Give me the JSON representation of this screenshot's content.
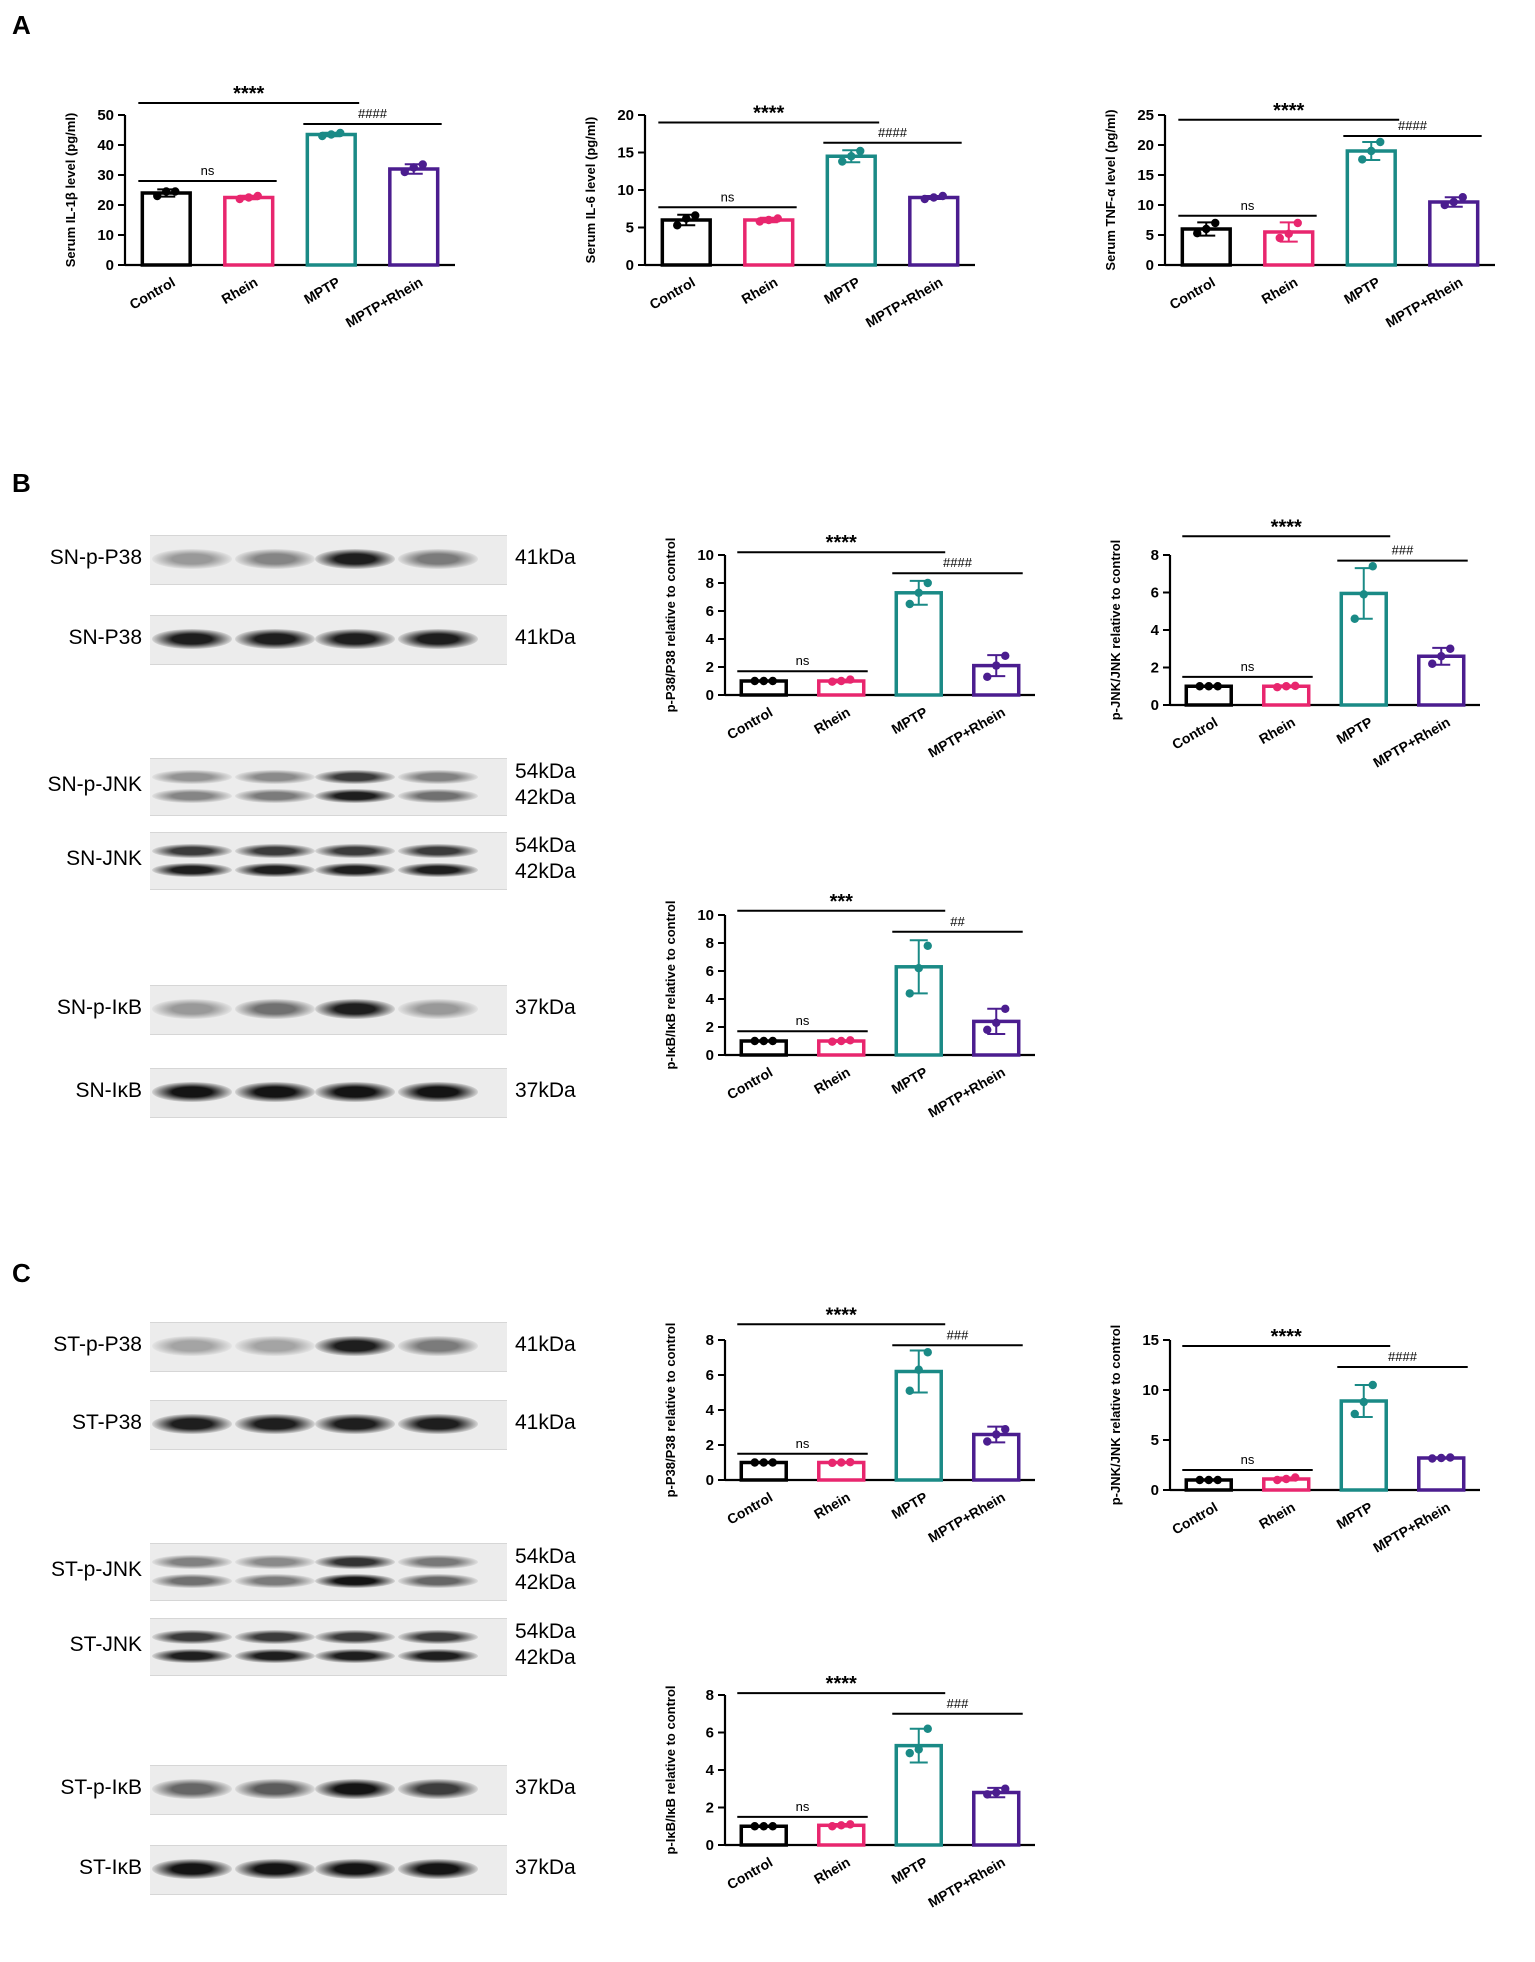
{
  "panels": {
    "a": "A",
    "b": "B",
    "c": "C"
  },
  "groups": [
    "Control",
    "Rhein",
    "MPTP",
    "MPTP+Rhein"
  ],
  "colors": {
    "Control": "#000000",
    "Rhein": "#e8266e",
    "MPTP": "#1a8a86",
    "MPTP+Rhein": "#4b1d8f"
  },
  "blots": {
    "B": [
      {
        "label": "SN-p-P38",
        "kda": [
          "41kDa"
        ],
        "intensity": [
          0.35,
          0.45,
          0.95,
          0.5
        ],
        "double": false
      },
      {
        "label": "SN-P38",
        "kda": [
          "41kDa"
        ],
        "intensity": [
          0.95,
          0.95,
          0.95,
          0.95
        ],
        "double": false
      },
      {
        "label": "SN-p-JNK",
        "kda": [
          "54kDa",
          "42kDa"
        ],
        "intensity": [
          0.45,
          0.5,
          0.95,
          0.55
        ],
        "double": true
      },
      {
        "label": "SN-JNK",
        "kda": [
          "54kDa",
          "42kDa"
        ],
        "intensity": [
          0.95,
          0.95,
          0.95,
          0.95
        ],
        "double": true
      },
      {
        "label": "SN-p-IκB",
        "kda": [
          "37kDa"
        ],
        "intensity": [
          0.35,
          0.55,
          0.95,
          0.35
        ],
        "double": false
      },
      {
        "label": "SN-IκB",
        "kda": [
          "37kDa"
        ],
        "intensity": [
          1.0,
          1.0,
          1.0,
          1.0
        ],
        "double": false
      }
    ],
    "C": [
      {
        "label": "ST-p-P38",
        "kda": [
          "41kDa"
        ],
        "intensity": [
          0.3,
          0.3,
          0.95,
          0.5
        ],
        "double": false
      },
      {
        "label": "ST-P38",
        "kda": [
          "41kDa"
        ],
        "intensity": [
          0.95,
          0.95,
          0.95,
          0.95
        ],
        "double": false
      },
      {
        "label": "ST-p-JNK",
        "kda": [
          "54kDa",
          "42kDa"
        ],
        "intensity": [
          0.55,
          0.5,
          1.0,
          0.6
        ],
        "double": true
      },
      {
        "label": "ST-JNK",
        "kda": [
          "54kDa",
          "42kDa"
        ],
        "intensity": [
          0.95,
          0.95,
          0.95,
          0.95
        ],
        "double": true
      },
      {
        "label": "ST-p-IκB",
        "kda": [
          "37kDa"
        ],
        "intensity": [
          0.6,
          0.65,
          1.0,
          0.8
        ],
        "double": false
      },
      {
        "label": "ST-IκB",
        "kda": [
          "37kDa"
        ],
        "intensity": [
          1.0,
          1.0,
          1.0,
          1.0
        ],
        "double": false
      }
    ]
  },
  "chart_data": [
    {
      "id": "A1",
      "type": "bar",
      "ylabel": "Serum IL-1β level (pg/ml)",
      "ylim": [
        0,
        50
      ],
      "yticks": [
        0,
        10,
        20,
        30,
        40,
        50
      ],
      "categories": [
        "Control",
        "Rhein",
        "MPTP",
        "MPTP+Rhein"
      ],
      "values": [
        24,
        22.5,
        43.5,
        32
      ],
      "sd": [
        1.2,
        0.6,
        0.6,
        1.6
      ],
      "points": [
        [
          23,
          24.5,
          24.5
        ],
        [
          22,
          22.5,
          23
        ],
        [
          43,
          43.5,
          44
        ],
        [
          31,
          32.5,
          33.5
        ]
      ],
      "annotations": [
        {
          "text": "ns",
          "from": 0,
          "to": 1,
          "level": 28
        },
        {
          "text": "****",
          "from": 0,
          "to": 2,
          "level": 54
        },
        {
          "text": "####",
          "from": 2,
          "to": 3,
          "level": 47
        }
      ]
    },
    {
      "id": "A2",
      "type": "bar",
      "ylabel": "Serum IL-6 level (pg/ml)",
      "ylim": [
        0,
        20
      ],
      "yticks": [
        0,
        5,
        10,
        15,
        20
      ],
      "categories": [
        "Control",
        "Rhein",
        "MPTP",
        "MPTP+Rhein"
      ],
      "values": [
        6,
        6,
        14.5,
        9
      ],
      "sd": [
        0.7,
        0.3,
        0.8,
        0.2
      ],
      "points": [
        [
          5.3,
          6.2,
          6.6
        ],
        [
          5.8,
          6,
          6.2
        ],
        [
          13.8,
          14.5,
          15.2
        ],
        [
          8.8,
          9,
          9.2
        ]
      ],
      "annotations": [
        {
          "text": "ns",
          "from": 0,
          "to": 1,
          "level": 7.7
        },
        {
          "text": "****",
          "from": 0,
          "to": 2,
          "level": 19
        },
        {
          "text": "####",
          "from": 2,
          "to": 3,
          "level": 16.3
        }
      ]
    },
    {
      "id": "A3",
      "type": "bar",
      "ylabel": "Serum TNF-α level (pg/ml)",
      "ylim": [
        0,
        25
      ],
      "yticks": [
        0,
        5,
        10,
        15,
        20,
        25
      ],
      "categories": [
        "Control",
        "Rhein",
        "MPTP",
        "MPTP+Rhein"
      ],
      "values": [
        6,
        5.5,
        19,
        10.5
      ],
      "sd": [
        1.1,
        1.6,
        1.5,
        0.8
      ],
      "points": [
        [
          5.3,
          6,
          7
        ],
        [
          4.5,
          5.2,
          7
        ],
        [
          17.6,
          19,
          20.5
        ],
        [
          10,
          10.5,
          11.3
        ]
      ],
      "annotations": [
        {
          "text": "ns",
          "from": 0,
          "to": 1,
          "level": 8.2
        },
        {
          "text": "****",
          "from": 0,
          "to": 2,
          "level": 24.2
        },
        {
          "text": "####",
          "from": 2,
          "to": 3,
          "level": 21.5
        }
      ]
    },
    {
      "id": "B1",
      "type": "bar",
      "ylabel": "p-P38/P38 relative to control",
      "ylim": [
        0,
        10
      ],
      "yticks": [
        0,
        2,
        4,
        6,
        8,
        10
      ],
      "categories": [
        "Control",
        "Rhein",
        "MPTP",
        "MPTP+Rhein"
      ],
      "values": [
        1,
        1,
        7.3,
        2.1
      ],
      "sd": [
        0.02,
        0.1,
        0.85,
        0.75
      ],
      "points": [
        [
          1,
          1,
          1
        ],
        [
          0.95,
          1,
          1.1
        ],
        [
          6.5,
          7.3,
          8
        ],
        [
          1.3,
          2.1,
          2.8
        ]
      ],
      "annotations": [
        {
          "text": "ns",
          "from": 0,
          "to": 1,
          "level": 1.7
        },
        {
          "text": "****",
          "from": 0,
          "to": 2,
          "level": 10.2
        },
        {
          "text": "####",
          "from": 2,
          "to": 3,
          "level": 8.7
        }
      ]
    },
    {
      "id": "B2",
      "type": "bar",
      "ylabel": "p-JNK/JNK relative to control",
      "ylim": [
        0,
        8
      ],
      "yticks": [
        0,
        2,
        4,
        6,
        8
      ],
      "categories": [
        "Control",
        "Rhein",
        "MPTP",
        "MPTP+Rhein"
      ],
      "values": [
        1,
        1,
        5.95,
        2.6
      ],
      "sd": [
        0.02,
        0.05,
        1.35,
        0.45
      ],
      "points": [
        [
          1,
          1,
          1
        ],
        [
          0.95,
          1,
          1.02
        ],
        [
          4.6,
          5.9,
          7.4
        ],
        [
          2.2,
          2.6,
          3.0
        ]
      ],
      "annotations": [
        {
          "text": "ns",
          "from": 0,
          "to": 1,
          "level": 1.5
        },
        {
          "text": "****",
          "from": 0,
          "to": 2,
          "level": 9.0
        },
        {
          "text": "###",
          "from": 2,
          "to": 3,
          "level": 7.7
        }
      ]
    },
    {
      "id": "B3",
      "type": "bar",
      "ylabel": "p-IκB/IκB relative to control",
      "ylim": [
        0,
        10
      ],
      "yticks": [
        0,
        2,
        4,
        6,
        8,
        10
      ],
      "categories": [
        "Control",
        "Rhein",
        "MPTP",
        "MPTP+Rhein"
      ],
      "values": [
        1,
        1,
        6.3,
        2.4
      ],
      "sd": [
        0.02,
        0.05,
        1.9,
        0.9
      ],
      "points": [
        [
          1,
          1,
          1
        ],
        [
          0.95,
          1,
          1.05
        ],
        [
          4.4,
          6.2,
          7.8
        ],
        [
          1.8,
          2.3,
          3.3
        ]
      ],
      "annotations": [
        {
          "text": "ns",
          "from": 0,
          "to": 1,
          "level": 1.7
        },
        {
          "text": "***",
          "from": 0,
          "to": 2,
          "level": 10.3
        },
        {
          "text": "##",
          "from": 2,
          "to": 3,
          "level": 8.8
        }
      ]
    },
    {
      "id": "C1",
      "type": "bar",
      "ylabel": "p-P38/P38 relative to control",
      "ylim": [
        0,
        8
      ],
      "yticks": [
        0,
        2,
        4,
        6,
        8
      ],
      "categories": [
        "Control",
        "Rhein",
        "MPTP",
        "MPTP+Rhein"
      ],
      "values": [
        1,
        1,
        6.2,
        2.6
      ],
      "sd": [
        0.02,
        0.03,
        1.2,
        0.45
      ],
      "points": [
        [
          1,
          1,
          1
        ],
        [
          0.98,
          1,
          1.02
        ],
        [
          5.1,
          6.3,
          7.3
        ],
        [
          2.2,
          2.6,
          2.9
        ]
      ],
      "annotations": [
        {
          "text": "ns",
          "from": 0,
          "to": 1,
          "level": 1.5
        },
        {
          "text": "****",
          "from": 0,
          "to": 2,
          "level": 8.9
        },
        {
          "text": "###",
          "from": 2,
          "to": 3,
          "level": 7.7
        }
      ]
    },
    {
      "id": "C2",
      "type": "bar",
      "ylabel": "p-JNK/JNK relative to control",
      "ylim": [
        0,
        15
      ],
      "yticks": [
        0,
        5,
        10,
        15
      ],
      "categories": [
        "Control",
        "Rhein",
        "MPTP",
        "MPTP+Rhein"
      ],
      "values": [
        1,
        1.1,
        8.9,
        3.2
      ],
      "sd": [
        0.02,
        0.15,
        1.6,
        0.05
      ],
      "points": [
        [
          1,
          1,
          1
        ],
        [
          1.0,
          1.1,
          1.25
        ],
        [
          7.6,
          8.8,
          10.5
        ],
        [
          3.15,
          3.2,
          3.25
        ]
      ],
      "annotations": [
        {
          "text": "ns",
          "from": 0,
          "to": 1,
          "level": 2.0
        },
        {
          "text": "****",
          "from": 0,
          "to": 2,
          "level": 14.4
        },
        {
          "text": "####",
          "from": 2,
          "to": 3,
          "level": 12.3
        }
      ]
    },
    {
      "id": "C3",
      "type": "bar",
      "ylabel": "p-IκB/IκB relative to control",
      "ylim": [
        0,
        8
      ],
      "yticks": [
        0,
        2,
        4,
        6,
        8
      ],
      "categories": [
        "Control",
        "Rhein",
        "MPTP",
        "MPTP+Rhein"
      ],
      "values": [
        1,
        1.05,
        5.3,
        2.8
      ],
      "sd": [
        0.02,
        0.07,
        0.9,
        0.25
      ],
      "points": [
        [
          1,
          1,
          1
        ],
        [
          1.0,
          1.05,
          1.1
        ],
        [
          4.9,
          5.1,
          6.2
        ],
        [
          2.7,
          2.8,
          3.0
        ]
      ],
      "annotations": [
        {
          "text": "ns",
          "from": 0,
          "to": 1,
          "level": 1.5
        },
        {
          "text": "****",
          "from": 0,
          "to": 2,
          "level": 8.1
        },
        {
          "text": "###",
          "from": 2,
          "to": 3,
          "level": 7.0
        }
      ]
    }
  ]
}
